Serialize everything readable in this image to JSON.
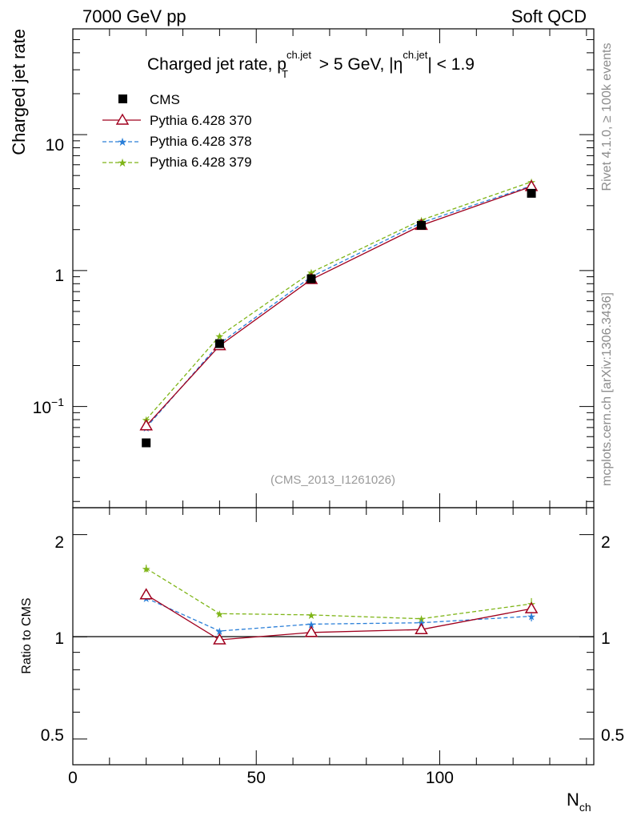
{
  "header": {
    "left": "7000 GeV pp",
    "right": "Soft QCD"
  },
  "side_labels": {
    "rivet": "Rivet 4.1.0, ≥ 100k events",
    "mcplots": "mcplots.cern.ch [arXiv:1306.3436]"
  },
  "chart_data": [
    {
      "type": "line",
      "panel": "main",
      "title_parts": {
        "main": "Charged jet rate, p",
        "pt_sup": "ch.jet",
        "pt_sub": "T",
        "mid": " > 5 GeV,  |η",
        "eta_sup": "ch.jet",
        "end": "| < 1.9"
      },
      "ylabel": "Charged jet rate",
      "xlabel": "N",
      "xlabel_sub": "ch",
      "yscale": "log",
      "ylim": [
        0.018,
        60
      ],
      "xlim": [
        0,
        142
      ],
      "y_ticks": [
        {
          "value": 0.1,
          "base": "10",
          "exp": "−1"
        },
        {
          "value": 1,
          "label": "1"
        },
        {
          "value": 10,
          "label": "10"
        }
      ],
      "watermark": "(CMS_2013_I1261026)",
      "legend_position": "top-left",
      "series": [
        {
          "name": "CMS",
          "marker": "square",
          "color": "#000000",
          "line": "none",
          "x": [
            20,
            40,
            65,
            95,
            125
          ],
          "values": [
            0.054,
            0.29,
            0.87,
            2.15,
            3.7
          ]
        },
        {
          "name": "Pythia 6.428 370",
          "marker": "triangle-open",
          "color": "#a0001e",
          "line": "solid",
          "x": [
            20,
            40,
            65,
            95,
            125
          ],
          "values": [
            0.072,
            0.28,
            0.86,
            2.15,
            4.15
          ]
        },
        {
          "name": "Pythia 6.428 378",
          "marker": "star",
          "color": "#2a7fd8",
          "line": "dashed",
          "x": [
            20,
            40,
            65,
            95,
            125
          ],
          "values": [
            0.07,
            0.29,
            0.9,
            2.25,
            4.2
          ]
        },
        {
          "name": "Pythia 6.428 379",
          "marker": "star",
          "color": "#7fb518",
          "line": "dashed",
          "x": [
            20,
            40,
            65,
            95,
            125
          ],
          "values": [
            0.08,
            0.33,
            0.97,
            2.35,
            4.5
          ]
        }
      ]
    },
    {
      "type": "line",
      "panel": "ratio",
      "ylabel": "Ratio to CMS",
      "yscale": "log",
      "ylim": [
        0.42,
        2.4
      ],
      "xlim": [
        0,
        142
      ],
      "x_ticks": [
        0,
        50,
        100
      ],
      "y_ticks": [
        {
          "value": 0.5,
          "label": "0.5"
        },
        {
          "value": 1,
          "label": "1"
        },
        {
          "value": 2,
          "label": "2"
        }
      ],
      "reference_line": 1,
      "series": [
        {
          "name": "Pythia 6.428 370",
          "marker": "triangle-open",
          "color": "#a0001e",
          "line": "solid",
          "x": [
            20,
            40,
            65,
            95,
            125
          ],
          "values": [
            1.33,
            0.98,
            1.03,
            1.05,
            1.21
          ],
          "errors": [
            0.02,
            0.01,
            0.01,
            0.01,
            0.03
          ]
        },
        {
          "name": "Pythia 6.428 378",
          "marker": "star",
          "color": "#2a7fd8",
          "line": "dashed",
          "x": [
            20,
            40,
            65,
            95,
            125
          ],
          "values": [
            1.3,
            1.04,
            1.09,
            1.1,
            1.15
          ],
          "errors": [
            0.02,
            0.01,
            0.01,
            0.01,
            0.04
          ]
        },
        {
          "name": "Pythia 6.428 379",
          "marker": "star",
          "color": "#7fb518",
          "line": "dashed",
          "x": [
            20,
            40,
            65,
            95,
            125
          ],
          "values": [
            1.59,
            1.17,
            1.16,
            1.13,
            1.25
          ],
          "errors": [
            0.04,
            0.01,
            0.01,
            0.01,
            0.05
          ]
        }
      ]
    }
  ]
}
